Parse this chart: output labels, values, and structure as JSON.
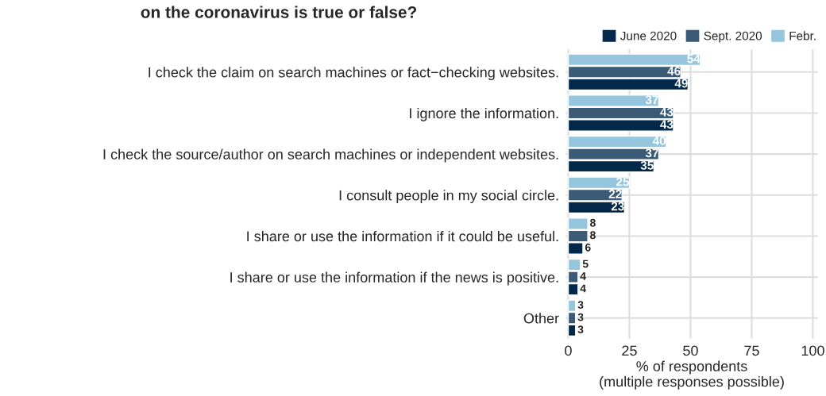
{
  "chart_data": {
    "type": "bar",
    "orientation": "horizontal",
    "title": "on the coronavirus is true or false?",
    "xlabel": "% of respondents\n(multiple responses possible)",
    "categories": [
      "I check the claim on search machines or fact−checking websites.",
      "I ignore the information.",
      "I check the source/author on search machines or independent websites.",
      "I consult people in my social circle.",
      "I share or use the information if it could be useful.",
      "I share or use the information if the news is positive.",
      "Other"
    ],
    "series": [
      {
        "name": "June 2020",
        "color": "#02284a",
        "values": [
          49,
          43,
          35,
          23,
          6,
          4,
          3
        ]
      },
      {
        "name": "Sept. 2020",
        "color": "#3a5a75",
        "values": [
          46,
          43,
          37,
          22,
          8,
          4,
          3
        ]
      },
      {
        "name": "Febr.",
        "color": "#96c6de",
        "values": [
          54,
          37,
          40,
          25,
          8,
          5,
          3
        ]
      }
    ],
    "xlim": [
      -1,
      102
    ],
    "xticks": [
      0,
      25,
      50,
      75,
      100
    ],
    "grid": true,
    "legend": "top right",
    "data_labels": true
  }
}
